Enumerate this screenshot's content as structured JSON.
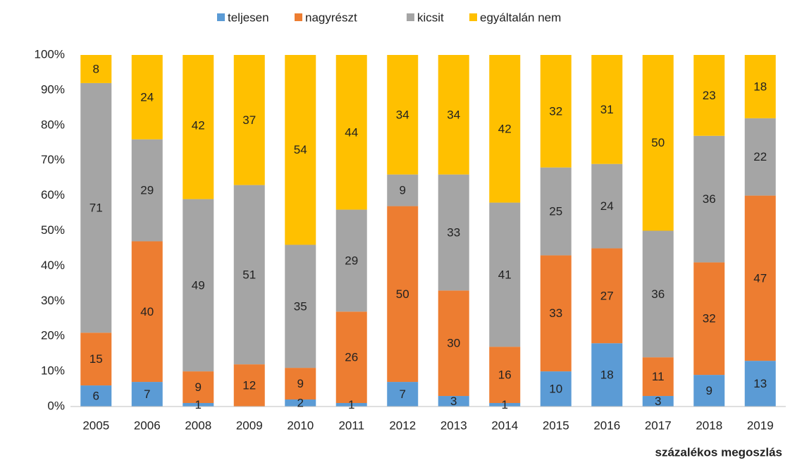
{
  "chart_data": {
    "type": "stacked_bar",
    "categories": [
      "2005",
      "2006",
      "2008",
      "2009",
      "2010",
      "2011",
      "2012",
      "2013",
      "2014",
      "2015",
      "2016",
      "2017",
      "2018",
      "2019"
    ],
    "series": [
      {
        "name": "teljesen",
        "color": "#5b9bd5",
        "values": [
          6,
          7,
          1,
          0,
          2,
          1,
          7,
          3,
          1,
          10,
          18,
          3,
          9,
          13
        ]
      },
      {
        "name": "nagyrészt",
        "color": "#ed7d31",
        "values": [
          15,
          40,
          9,
          12,
          9,
          26,
          50,
          30,
          16,
          33,
          27,
          11,
          32,
          47
        ]
      },
      {
        "name": "kicsit",
        "color": "#a5a5a5",
        "values": [
          71,
          29,
          49,
          51,
          35,
          29,
          9,
          33,
          41,
          25,
          24,
          36,
          36,
          22
        ]
      },
      {
        "name": "egyáltalán nem",
        "color": "#ffc000",
        "values": [
          8,
          24,
          42,
          37,
          54,
          44,
          34,
          34,
          42,
          32,
          31,
          50,
          23,
          18
        ]
      }
    ],
    "ylim": [
      0,
      100
    ],
    "yticks": [
      {
        "value": 0,
        "label": "0%"
      },
      {
        "value": 10,
        "label": "10%"
      },
      {
        "value": 20,
        "label": "20%"
      },
      {
        "value": 30,
        "label": "30%"
      },
      {
        "value": 40,
        "label": "40%"
      },
      {
        "value": 50,
        "label": "50%"
      },
      {
        "value": 60,
        "label": "60%"
      },
      {
        "value": 70,
        "label": "70%"
      },
      {
        "value": 80,
        "label": "80%"
      },
      {
        "value": 90,
        "label": "90%"
      },
      {
        "value": 100,
        "label": "100%"
      }
    ],
    "xlabel": "százalékos megoszlás",
    "grid": false,
    "legend": "top"
  }
}
